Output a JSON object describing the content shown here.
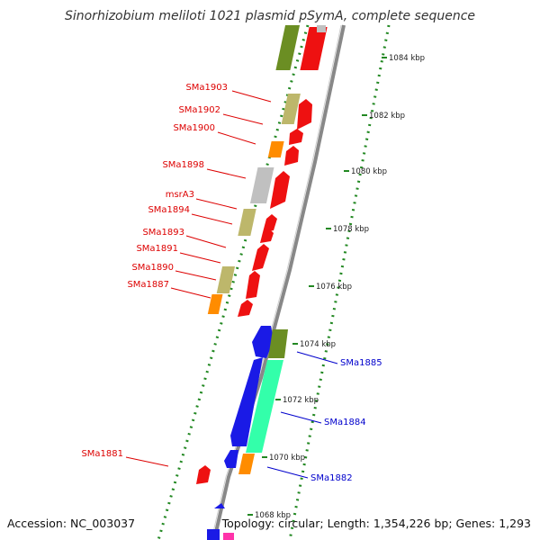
{
  "title": "Sinorhizobium meliloti 1021 plasmid pSymA, complete sequence",
  "footer": {
    "accession": "Accession: NC_003037",
    "topology": "Topology: circular; Length: 1,354,226 bp; Genes: 1,293"
  },
  "colors": {
    "backbone": "#888888",
    "label_left": "#dd0000",
    "label_right": "#0000cc",
    "tick_dots": "#228822",
    "cds_red": "#ee1111",
    "cds_blue": "#1a1ae6",
    "olive": "#6b8e23",
    "khaki": "#bdb76b",
    "orange": "#ff8c00",
    "grey": "#c0c0c0",
    "aqua": "#33ffaa",
    "magenta": "#ff33aa"
  },
  "scale_ticks": [
    {
      "label": "1084 kbp"
    },
    {
      "label": "1082 kbp"
    },
    {
      "label": "1080 kbp"
    },
    {
      "label": "1078 kbp"
    },
    {
      "label": "1076 kbp"
    },
    {
      "label": "1074 kbp"
    },
    {
      "label": "1072 kbp"
    },
    {
      "label": "1070 kbp"
    },
    {
      "label": "1068 kbp"
    }
  ],
  "left_labels": [
    {
      "text": "SMa1903"
    },
    {
      "text": "SMa1902"
    },
    {
      "text": "SMa1900"
    },
    {
      "text": "SMa1898"
    },
    {
      "text": "msrA3"
    },
    {
      "text": "SMa1894"
    },
    {
      "text": "SMa1893"
    },
    {
      "text": "SMa1891"
    },
    {
      "text": "SMa1890"
    },
    {
      "text": "SMa1887"
    },
    {
      "text": "SMa1881"
    }
  ],
  "right_labels": [
    {
      "text": "SMa1885"
    },
    {
      "text": "SMa1884"
    },
    {
      "text": "SMa1882"
    }
  ]
}
